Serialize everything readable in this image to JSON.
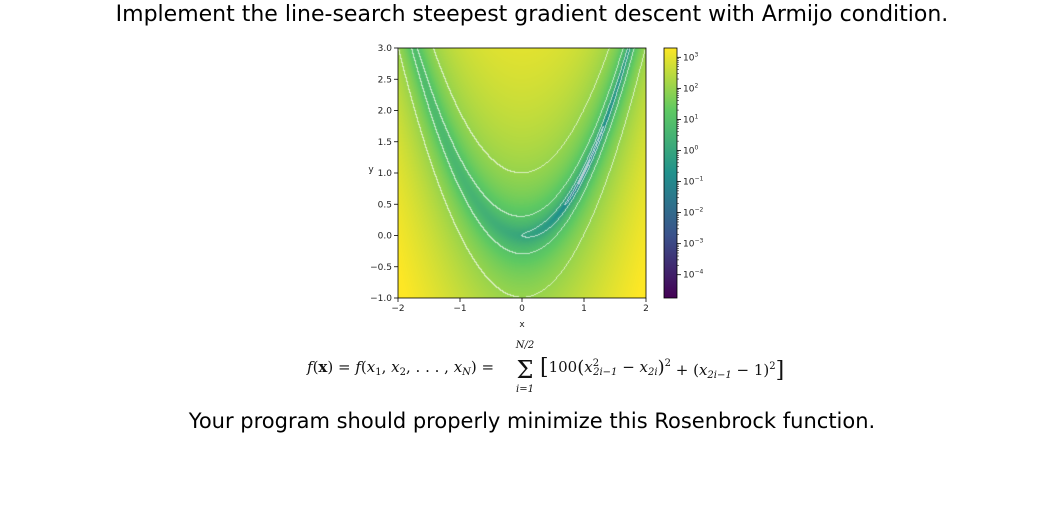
{
  "slide": {
    "title": "Implement the line-search steepest gradient descent with Armijo condition.",
    "footer": "Your program should properly minimize this Rosenbrock function."
  },
  "colors": {
    "colormap": [
      "#440154",
      "#3b528b",
      "#21918c",
      "#5ec962",
      "#fde725"
    ],
    "contour": "#ffffff"
  },
  "chart_data": {
    "type": "heatmap",
    "colormap": "viridis",
    "scale": "log",
    "x_ticks": [
      "−2",
      "−1",
      "0",
      "1",
      "2"
    ],
    "y_ticks": [
      "3.0",
      "2.5",
      "2.0",
      "1.5",
      "1.0",
      "0.5",
      "0.0",
      "−0.5",
      "−1.0"
    ],
    "xlabel": "x",
    "ylabel": "y",
    "xlim": [
      -2,
      2
    ],
    "ylim": [
      -1,
      3
    ],
    "colorbar_ticks": [
      {
        "base": "10",
        "exp": "3",
        "value": 3
      },
      {
        "base": "10",
        "exp": "2",
        "value": 2
      },
      {
        "base": "10",
        "exp": "1",
        "value": 1
      },
      {
        "base": "10",
        "exp": "0",
        "value": 0
      },
      {
        "base": "10",
        "exp": "−1",
        "value": -1
      },
      {
        "base": "10",
        "exp": "−2",
        "value": -2
      },
      {
        "base": "10",
        "exp": "−3",
        "value": -3
      },
      {
        "base": "10",
        "exp": "−4",
        "value": -4
      }
    ],
    "colorbar_range": [
      -4.75,
      3.3
    ],
    "contour_levels": [
      0.01,
      0.1,
      1,
      10,
      100
    ],
    "function": "(1 - x)^2 + 100 (y - x^2)^2"
  },
  "formula": {
    "lhs": "f(x) = f(x",
    "text": "f(x) = f(x1, x2, ..., xN) = Σ_{i=1}^{N/2} [100(x_{2i−1}^2 − x_{2i})^2 + (x_{2i−1} − 1)^2]",
    "sum_upper": "N/2",
    "sum_lower": "i=1"
  }
}
